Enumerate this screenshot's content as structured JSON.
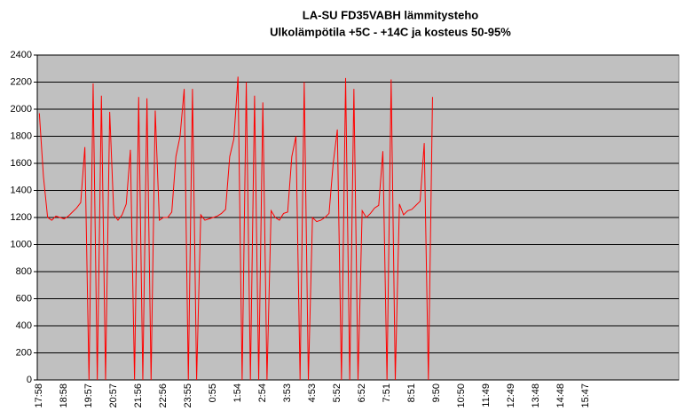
{
  "chart_data": {
    "type": "line",
    "title": "LA-SU FD35VABH lämmitysteho",
    "subtitle": "Ulkolämpötila  +5C - +14C ja kosteus 50-95%",
    "categories": [
      "17:58",
      null,
      null,
      null,
      null,
      null,
      "18:58",
      null,
      null,
      null,
      null,
      null,
      "19:57",
      null,
      null,
      null,
      null,
      null,
      "20:57",
      null,
      null,
      null,
      null,
      null,
      "21:56",
      null,
      null,
      null,
      null,
      null,
      "22:56",
      null,
      null,
      null,
      null,
      null,
      "23:55",
      null,
      null,
      null,
      null,
      null,
      "0:55",
      null,
      null,
      null,
      null,
      null,
      "1:54",
      null,
      null,
      null,
      null,
      null,
      "2:54",
      null,
      null,
      null,
      null,
      null,
      "3:53",
      null,
      null,
      null,
      null,
      null,
      "4:53",
      null,
      null,
      null,
      null,
      null,
      "5:52",
      null,
      null,
      null,
      null,
      null,
      "6:52",
      null,
      null,
      null,
      null,
      null,
      "7:51",
      null,
      null,
      null,
      null,
      null,
      "8:51",
      null,
      null,
      null,
      null,
      null,
      "9:50",
      null,
      null,
      null,
      null,
      null,
      "10:50",
      null,
      null,
      null,
      null,
      null,
      "11:49",
      null,
      null,
      null,
      null,
      null,
      "12:49",
      null,
      null,
      null,
      null,
      null,
      "13:48",
      null,
      null,
      null,
      null,
      null,
      "14:48",
      null,
      null,
      null,
      null,
      null,
      "15:47",
      null,
      null,
      null,
      null,
      null,
      null,
      null,
      null,
      null,
      null,
      null,
      null,
      null,
      null,
      null,
      null,
      null,
      null,
      null,
      null,
      null,
      null
    ],
    "values": [
      1970,
      1500,
      1200,
      1180,
      1210,
      1200,
      1190,
      1210,
      1240,
      1270,
      1310,
      1720,
      0,
      2190,
      0,
      2100,
      0,
      1980,
      1220,
      1180,
      1220,
      1300,
      1700,
      0,
      2090,
      0,
      2080,
      0,
      1990,
      1180,
      1200,
      1200,
      1240,
      1650,
      1800,
      2150,
      0,
      2150,
      0,
      1220,
      1180,
      1190,
      1200,
      1210,
      1230,
      1260,
      1650,
      1780,
      2240,
      0,
      2200,
      0,
      2100,
      0,
      2050,
      0,
      1250,
      1200,
      1180,
      1230,
      1240,
      1650,
      1800,
      0,
      2200,
      0,
      1200,
      1170,
      1180,
      1200,
      1230,
      1600,
      1850,
      0,
      2230,
      0,
      2150,
      0,
      1250,
      1200,
      1230,
      1270,
      1290,
      1690,
      0,
      2220,
      0,
      1300,
      1220,
      1250,
      1260,
      1290,
      1320,
      1750,
      0,
      2090,
      null,
      null,
      null,
      null,
      null,
      null,
      null,
      null,
      null,
      null,
      null,
      null,
      null,
      null,
      null,
      null,
      null,
      null,
      null,
      null,
      null,
      null,
      null,
      null,
      null,
      null,
      null,
      null,
      null,
      null,
      null,
      null,
      null,
      null,
      null,
      null,
      null,
      null,
      null,
      null,
      null,
      null,
      null,
      null,
      null,
      null,
      null,
      null,
      null,
      null,
      null,
      null,
      null,
      null,
      null,
      null,
      null,
      null,
      null
    ],
    "color": "#ff0000",
    "ylim": [
      0,
      2400
    ],
    "yticks": [
      0,
      200,
      400,
      600,
      800,
      1000,
      1200,
      1400,
      1600,
      1800,
      2000,
      2200,
      2400
    ],
    "grid": true
  }
}
